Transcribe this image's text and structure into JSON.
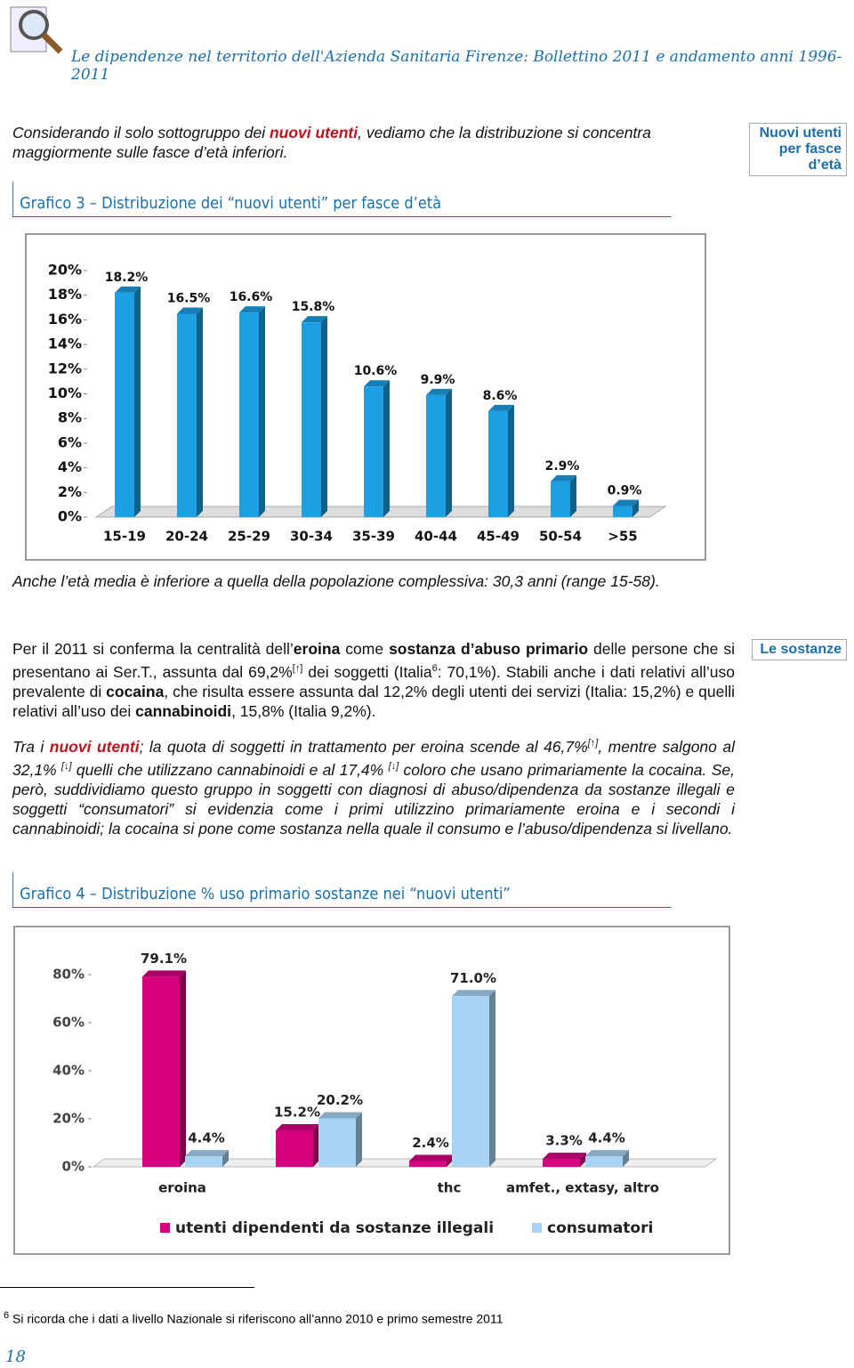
{
  "header": {
    "title": "Le dipendenze nel territorio dell'Azienda Sanitaria Firenze: Bollettino 2011 e andamento anni 1996-2011"
  },
  "intro": [
    "Considerando il solo sottogruppo dei ",
    "nuovi utenti",
    ", vediamo che la distribuzione si concentra maggiormente sulle fasce d’età inferiori."
  ],
  "side_notes": [
    "Nuovi utenti per fasce d’età",
    "Le sostanze"
  ],
  "after_chart": "Anche l’età media è inferiore a quella della popolazione complessiva: 30,3 anni (range 15-58).",
  "paragraph_1": [
    "Per il 2011 si conferma la centralità dell’",
    "eroina",
    " come ",
    "sostanza d’abuso primario",
    " delle persone che si presentano ai Ser.T., assunta dal 69,2%",
    "[↑]",
    " dei soggetti (Italia",
    "6",
    ": 70,1%). Stabili anche i dati relativi all’uso prevalente di ",
    "cocaina",
    ", che risulta essere assunta dal 12,2% degli utenti dei servizi (Italia: 15,2%) e quelli relativi all’uso dei ",
    "cannabinoidi",
    ", 15,8% (Italia 9,2%)."
  ],
  "paragraph_2": [
    "Tra i ",
    "nuovi utenti",
    "; la quota di soggetti in trattamento per eroina scende al 46,7%",
    "[↑]",
    ", mentre salgono al 32,1% ",
    "[↓]",
    " quelli che utilizzano cannabinoidi e al 17,4% ",
    "[↓]",
    " coloro che usano primariamente la cocaina. Se, però, suddividiamo questo gruppo in soggetti con diagnosi di abuso/dipendenza da sostanze illegali e soggetti “consumatori” si evidenzia come i primi utilizzino primariamente eroina e i secondi i cannabinoidi; la cocaina si pone come sostanza nella quale il consumo e l’abuso/dipendenza si livellano."
  ],
  "chart_data": [
    {
      "type": "bar",
      "title": "Grafico 3 – Distribuzione dei “nuovi utenti” per fasce d’età",
      "categories": [
        "15-19",
        "20-24",
        "25-29",
        "30-34",
        "35-39",
        "40-44",
        "45-49",
        "50-54",
        ">55"
      ],
      "values": [
        18.2,
        16.5,
        16.6,
        15.8,
        10.6,
        9.9,
        8.6,
        2.9,
        0.9
      ],
      "value_labels": [
        "18.2%",
        "16.5%",
        "16.6%",
        "15.8%",
        "10.6%",
        "9.9%",
        "8.6%",
        "2.9%",
        "0.9%"
      ],
      "color": "#1e9fe3",
      "ylim": [
        0,
        20
      ],
      "yticks": [
        {
          "value": 0,
          "label": "0%"
        },
        {
          "value": 2,
          "label": "2%"
        },
        {
          "value": 4,
          "label": "4%"
        },
        {
          "value": 6,
          "label": "6%"
        },
        {
          "value": 8,
          "label": "8%"
        },
        {
          "value": 10,
          "label": "10%"
        },
        {
          "value": 12,
          "label": "12%"
        },
        {
          "value": 14,
          "label": "14%"
        },
        {
          "value": 16,
          "label": "16%"
        },
        {
          "value": 18,
          "label": "18%"
        },
        {
          "value": 20,
          "label": "20%"
        }
      ]
    },
    {
      "type": "grouped_bar",
      "title": "Grafico 4 – Distribuzione % uso primario sostanze nei “nuovi utenti”",
      "categories": [
        "eroina",
        null,
        "thc",
        "amfet., extasy, altro"
      ],
      "series": [
        {
          "name": "utenti dipendenti da sostanze illegali",
          "color": "#d6007f",
          "values": [
            79.1,
            15.2,
            2.4,
            3.3
          ],
          "value_labels": [
            "79.1%",
            "15.2%",
            "2.4%",
            "3.3%"
          ]
        },
        {
          "name": "consumatori",
          "color": "#a9d3f5",
          "values": [
            4.4,
            20.2,
            71.0,
            4.4
          ],
          "value_labels": [
            "4.4%",
            "20.2%",
            "71.0%",
            "4.4%"
          ]
        }
      ],
      "ylim": [
        0,
        85
      ],
      "yticks": [
        {
          "value": 0,
          "label": "0%"
        },
        {
          "value": 20,
          "label": "20%"
        },
        {
          "value": 40,
          "label": "40%"
        },
        {
          "value": 60,
          "label": "60%"
        },
        {
          "value": 80,
          "label": "80%"
        }
      ]
    }
  ],
  "footnote": [
    "6",
    "Si ricorda che i dati a livello Nazionale si riferiscono all’anno 2010 e primo semestre 2011"
  ],
  "page_number": "18"
}
